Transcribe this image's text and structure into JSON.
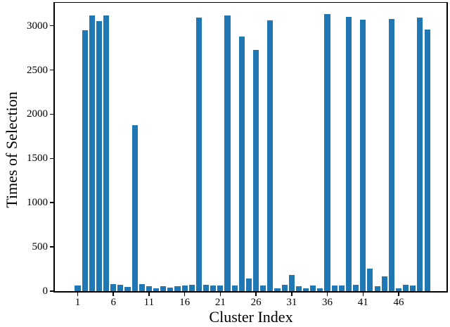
{
  "chart_data": {
    "type": "bar",
    "title": "",
    "xlabel": "Cluster Index",
    "ylabel": "Times of Selection",
    "bar_color": "#1f77b4",
    "categories": [
      1,
      2,
      3,
      4,
      5,
      6,
      7,
      8,
      9,
      10,
      11,
      12,
      13,
      14,
      15,
      16,
      17,
      18,
      19,
      20,
      21,
      22,
      23,
      24,
      25,
      26,
      27,
      28,
      29,
      30,
      31,
      32,
      33,
      34,
      35,
      36,
      37,
      38,
      39,
      40,
      41,
      42,
      43,
      44,
      45,
      46,
      47,
      48,
      49,
      50
    ],
    "values": [
      65,
      2950,
      3120,
      3050,
      3120,
      80,
      75,
      45,
      1880,
      80,
      55,
      35,
      55,
      40,
      55,
      65,
      70,
      3090,
      70,
      60,
      65,
      3120,
      65,
      2880,
      145,
      2730,
      65,
      3060,
      30,
      70,
      180,
      55,
      35,
      60,
      35,
      3130,
      65,
      65,
      3100,
      70,
      3070,
      255,
      55,
      170,
      3080,
      30,
      70,
      65,
      3090,
      2960
    ],
    "x_ticks": [
      1,
      6,
      11,
      16,
      21,
      26,
      31,
      36,
      41,
      46
    ],
    "y_ticks": [
      0,
      500,
      1000,
      1500,
      2000,
      2500,
      3000
    ],
    "xlim": [
      -2.2,
      52.8
    ],
    "ylim": [
      0,
      3260
    ],
    "bar_width_units": 0.8,
    "grid": false,
    "legend": null
  }
}
